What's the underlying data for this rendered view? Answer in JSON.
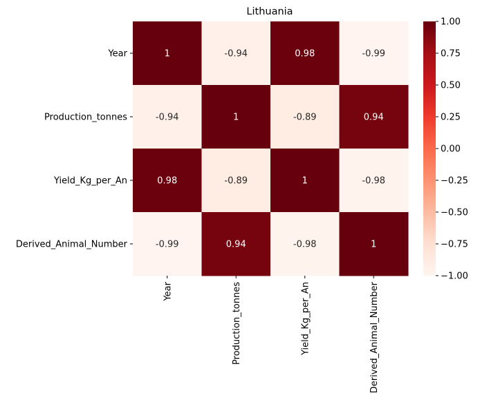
{
  "chart_data": {
    "type": "heatmap",
    "title": "Lithuania",
    "xlabel": "",
    "ylabel": "",
    "row_labels": [
      "Year",
      "Production_tonnes",
      "Yield_Kg_per_An",
      "Derived_Animal_Number"
    ],
    "col_labels": [
      "Year",
      "Production_tonnes",
      "Yield_Kg_per_An",
      "Derived_Animal_Number"
    ],
    "values": [
      [
        1,
        -0.94,
        0.98,
        -0.99
      ],
      [
        -0.94,
        1,
        -0.89,
        0.94
      ],
      [
        0.98,
        -0.89,
        1,
        -0.98
      ],
      [
        -0.99,
        0.94,
        -0.98,
        1
      ]
    ],
    "annotations": [
      [
        "1",
        "-0.94",
        "0.98",
        "-0.99"
      ],
      [
        "-0.94",
        "1",
        "-0.89",
        "0.94"
      ],
      [
        "0.98",
        "-0.89",
        "1",
        "-0.98"
      ],
      [
        "-0.99",
        "0.94",
        "-0.98",
        "1"
      ]
    ],
    "colormap": "Reds",
    "vmin": -1,
    "vmax": 1,
    "colorbar_ticks": [
      "1.00",
      "0.75",
      "0.50",
      "0.25",
      "0.00",
      "−0.25",
      "−0.50",
      "−0.75",
      "−1.00"
    ],
    "colorbar_tick_values": [
      1,
      0.75,
      0.5,
      0.25,
      0,
      -0.25,
      -0.5,
      -0.75,
      -1
    ],
    "grid": false,
    "legend": "colorbar-right"
  }
}
